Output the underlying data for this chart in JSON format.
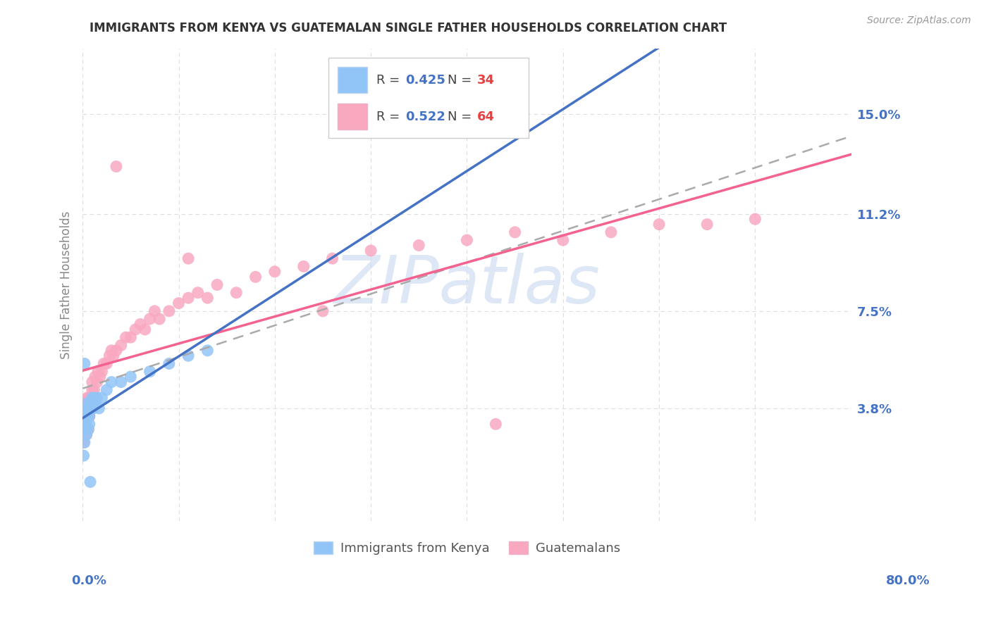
{
  "title": "IMMIGRANTS FROM KENYA VS GUATEMALAN SINGLE FATHER HOUSEHOLDS CORRELATION CHART",
  "source": "Source: ZipAtlas.com",
  "ylabel": "Single Father Households",
  "ytick_labels": [
    "15.0%",
    "11.2%",
    "7.5%",
    "3.8%"
  ],
  "ytick_values": [
    0.15,
    0.112,
    0.075,
    0.038
  ],
  "xlim": [
    0.0,
    0.8
  ],
  "ylim": [
    -0.005,
    0.175
  ],
  "kenya_R": 0.425,
  "kenya_N": 34,
  "guatemala_R": 0.522,
  "guatemala_N": 64,
  "kenya_color": "#92C5F7",
  "guatemala_color": "#F9A8C0",
  "kenya_line_color": "#4472C4",
  "guatemala_line_color": "#F4628F",
  "regression_line_color": "#AAAAAA",
  "background_color": "#FFFFFF",
  "watermark_color": "#C8D8F0",
  "title_color": "#333333",
  "source_color": "#999999",
  "ylabel_color": "#888888",
  "tick_color": "#4472C4",
  "grid_color": "#DDDDDD",
  "legend_text_dark": "#333333",
  "legend_r_color": "#4472C4",
  "legend_n_color": "#E84040"
}
